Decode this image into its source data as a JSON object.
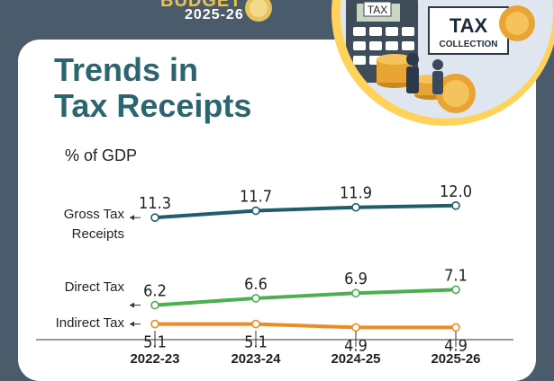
{
  "badge": {
    "word": "BUDGET",
    "year": "2025-26"
  },
  "illustration": {
    "tax_sign": "TAX",
    "collection_sign_line1": "TAX",
    "collection_sign_line2": "COLLECTION",
    "colors": {
      "frame": "#ffd35a",
      "coin": "#e8a534",
      "calculator": "#3f4c5a"
    }
  },
  "title_line1": "Trends in",
  "title_line2": "Tax Receipts",
  "unit_label": "% of GDP",
  "colors": {
    "background": "#4a5b6c",
    "title": "#2b6670",
    "gross": "#1f5d6b",
    "direct": "#4caf50",
    "indirect": "#f08a24"
  },
  "chart_data": {
    "type": "line",
    "categories": [
      "2022-23",
      "2023-24",
      "2024-25",
      "2025-26"
    ],
    "ylabel": "% of GDP",
    "series": [
      {
        "name": "Gross Tax Receipts",
        "name_lines": [
          "Gross Tax",
          "Receipts"
        ],
        "values": [
          11.3,
          11.7,
          11.9,
          12.0
        ],
        "value_labels": [
          "11.3",
          "11.7",
          "11.9",
          "12.0"
        ]
      },
      {
        "name": "Direct Tax",
        "name_lines": [
          "Direct Tax"
        ],
        "values": [
          6.2,
          6.6,
          6.9,
          7.1
        ],
        "value_labels": [
          "6.2",
          "6.6",
          "6.9",
          "7.1"
        ]
      },
      {
        "name": "Indirect Tax",
        "name_lines": [
          "Indirect Tax"
        ],
        "values": [
          5.1,
          5.1,
          4.9,
          4.9
        ],
        "value_labels": [
          "5.1",
          "5.1",
          "4.9",
          "4.9"
        ]
      }
    ],
    "grid": false,
    "legend": "left, next to each line"
  }
}
